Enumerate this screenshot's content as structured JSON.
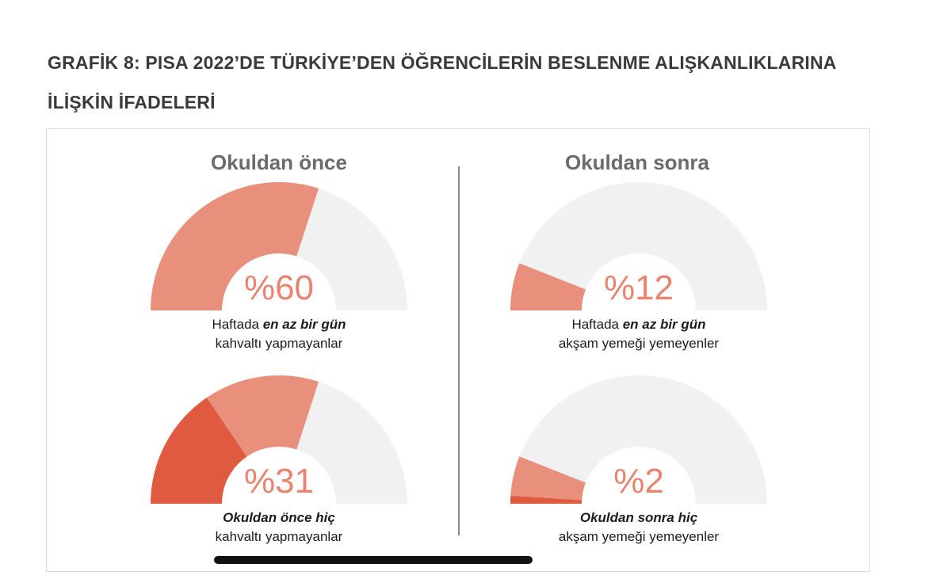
{
  "title": {
    "line1": "GRAFİK 8: PISA 2022’DE TÜRKİYE’DEN ÖĞRENCİLERİN BESLENME ALIŞKANLIKLARINA",
    "line2": "İLİŞKİN İFADELERİ"
  },
  "colors": {
    "light": "#e8907c",
    "dark": "#e05a40",
    "track": "#f1f1f1",
    "percent_text": "#e8846f"
  },
  "chart_data": [
    {
      "type": "gauge",
      "panel": "Okuldan önce",
      "label": "%60",
      "caption_prefix": "Haftada ",
      "caption_emphasis": "en az bir gün",
      "caption_line2": "kahvaltı yapmayanlar",
      "segments": [
        {
          "share": 60,
          "color": "light"
        }
      ]
    },
    {
      "type": "gauge",
      "panel": "Okuldan sonra",
      "label": "%12",
      "caption_prefix": "Haftada ",
      "caption_emphasis": "en az bir gün",
      "caption_line2": "akşam yemeği yemeyenler",
      "segments": [
        {
          "share": 12,
          "color": "light"
        }
      ]
    },
    {
      "type": "gauge",
      "panel": "Okuldan önce",
      "label": "%31",
      "caption_prefix": "",
      "caption_emphasis": "Okuldan önce hiç",
      "caption_line2": "kahvaltı yapmayanlar",
      "segments": [
        {
          "share": 31,
          "color": "dark"
        },
        {
          "share": 29,
          "color": "light"
        }
      ]
    },
    {
      "type": "gauge",
      "panel": "Okuldan sonra",
      "label": "%2",
      "caption_prefix": "",
      "caption_emphasis": "Okuldan sonra hiç",
      "caption_line2": "akşam yemeği yemeyenler",
      "segments": [
        {
          "share": 2,
          "color": "dark"
        },
        {
          "share": 10,
          "color": "light"
        }
      ]
    }
  ],
  "headings": {
    "left": "Okuldan önce",
    "right": "Okuldan sonra"
  }
}
